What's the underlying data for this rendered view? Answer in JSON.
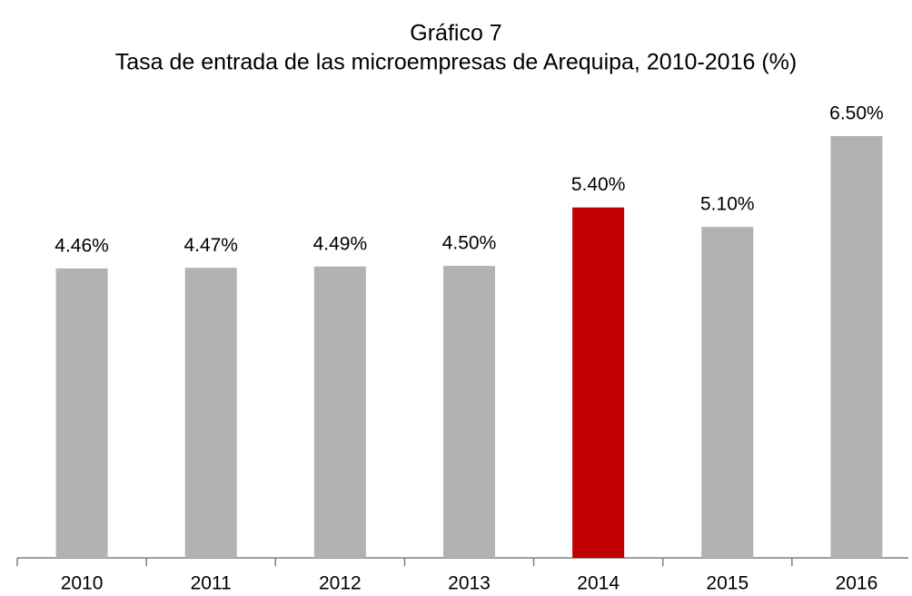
{
  "chart_data": {
    "type": "bar",
    "title": "Gráfico 7",
    "subtitle": "Tasa de entrada de las microempresas de Arequipa, 2010-2016 (%)",
    "categories": [
      "2010",
      "2011",
      "2012",
      "2013",
      "2014",
      "2015",
      "2016"
    ],
    "values": [
      4.46,
      4.47,
      4.49,
      4.5,
      5.4,
      5.1,
      6.5
    ],
    "value_labels": [
      "4.46%",
      "4.47%",
      "4.49%",
      "4.50%",
      "5.40%",
      "5.10%",
      "6.50%"
    ],
    "colors": [
      "#b2b2b2",
      "#b2b2b2",
      "#b2b2b2",
      "#b2b2b2",
      "#c00000",
      "#b2b2b2",
      "#b2b2b2"
    ]
  }
}
